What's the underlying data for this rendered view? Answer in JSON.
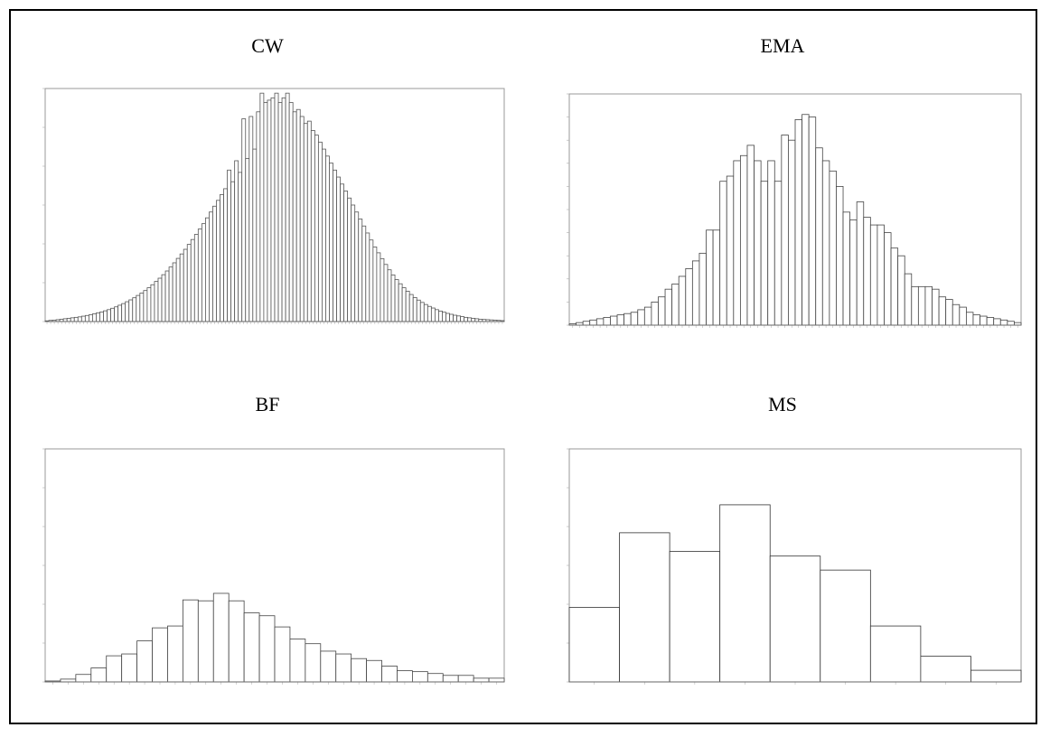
{
  "figure": {
    "panels": [
      {
        "id": "cw",
        "title": "CW"
      },
      {
        "id": "ema",
        "title": "EMA"
      },
      {
        "id": "bf",
        "title": "BF"
      },
      {
        "id": "ms",
        "title": "MS"
      }
    ]
  },
  "chart_data": [
    {
      "type": "bar",
      "title": "CW",
      "xlabel": "",
      "ylabel": "",
      "ylim": [
        0,
        1000
      ],
      "values": [
        3,
        5,
        6,
        8,
        10,
        12,
        14,
        16,
        18,
        20,
        23,
        26,
        29,
        33,
        37,
        41,
        46,
        51,
        57,
        63,
        70,
        77,
        85,
        93,
        102,
        112,
        122,
        133,
        145,
        158,
        172,
        186,
        201,
        217,
        234,
        252,
        271,
        290,
        310,
        331,
        352,
        374,
        397,
        420,
        445,
        470,
        495,
        520,
        545,
        570,
        650,
        600,
        690,
        640,
        870,
        700,
        880,
        740,
        900,
        980,
        940,
        950,
        960,
        980,
        940,
        960,
        980,
        940,
        900,
        910,
        880,
        850,
        860,
        820,
        800,
        770,
        740,
        710,
        680,
        650,
        620,
        590,
        560,
        530,
        500,
        470,
        440,
        410,
        380,
        350,
        320,
        295,
        270,
        245,
        222,
        200,
        180,
        162,
        145,
        130,
        116,
        103,
        92,
        82,
        73,
        65,
        58,
        51,
        45,
        40,
        35,
        31,
        27,
        24,
        21,
        18,
        16,
        14,
        12,
        10,
        9,
        8,
        7,
        6,
        5,
        4
      ],
      "grid": false
    },
    {
      "type": "bar",
      "title": "EMA",
      "xlabel": "",
      "ylabel": "",
      "ylim": [
        0,
        9
      ],
      "values": [
        0.05,
        0.1,
        0.15,
        0.2,
        0.25,
        0.3,
        0.35,
        0.4,
        0.45,
        0.5,
        0.6,
        0.7,
        0.9,
        1.1,
        1.4,
        1.6,
        1.9,
        2.2,
        2.5,
        2.8,
        3.7,
        3.7,
        5.6,
        5.8,
        6.4,
        6.6,
        7.0,
        6.4,
        5.6,
        6.4,
        5.6,
        7.4,
        7.2,
        8.0,
        8.2,
        8.1,
        6.9,
        6.4,
        6.0,
        5.4,
        4.4,
        4.1,
        4.8,
        4.2,
        3.9,
        3.9,
        3.6,
        3.0,
        2.7,
        2.0,
        1.5,
        1.5,
        1.5,
        1.4,
        1.1,
        1.0,
        0.8,
        0.7,
        0.5,
        0.4,
        0.35,
        0.3,
        0.25,
        0.2,
        0.15,
        0.1
      ],
      "grid": false
    },
    {
      "type": "bar",
      "title": "BF",
      "xlabel": "",
      "ylabel": "",
      "ylim": [
        0,
        25
      ],
      "values": [
        0.1,
        0.3,
        0.8,
        1.5,
        2.8,
        3.0,
        4.4,
        5.8,
        6.0,
        8.8,
        8.7,
        9.5,
        8.7,
        7.4,
        7.1,
        5.9,
        4.6,
        4.1,
        3.3,
        3.0,
        2.5,
        2.3,
        1.7,
        1.2,
        1.1,
        0.9,
        0.7,
        0.7,
        0.4,
        0.4
      ],
      "grid": false
    },
    {
      "type": "bar",
      "title": "MS",
      "xlabel": "",
      "ylabel": "",
      "ylim": [
        0,
        5
      ],
      "values": [
        1.6,
        3.2,
        2.8,
        3.8,
        2.7,
        2.4,
        1.2,
        0.55,
        0.25
      ],
      "grid": false
    }
  ]
}
